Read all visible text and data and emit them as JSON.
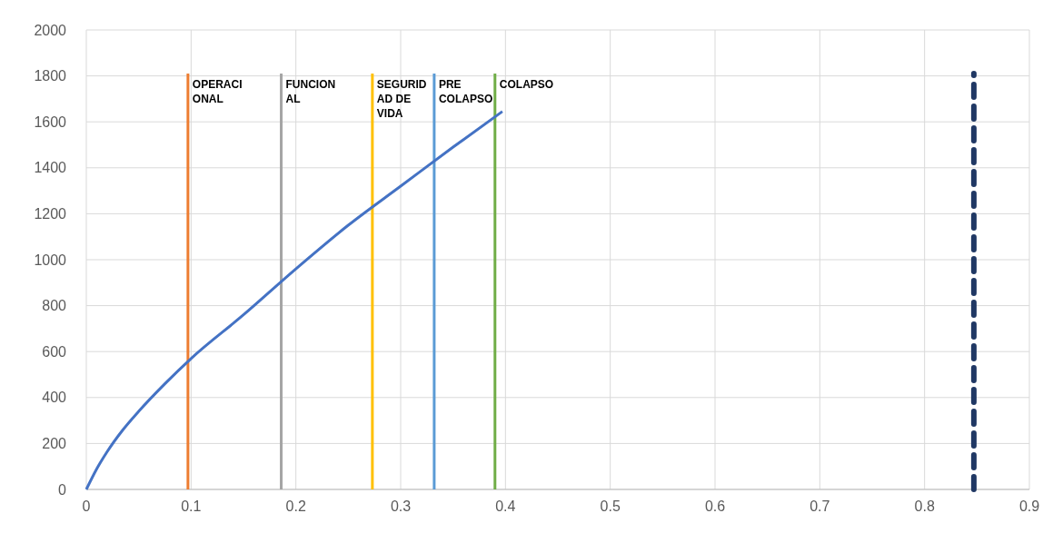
{
  "chart_data": {
    "type": "line",
    "xlim": [
      0,
      0.9
    ],
    "xticks": [
      0,
      0.1,
      0.2,
      0.3,
      0.4,
      0.5,
      0.6,
      0.7,
      0.8,
      0.9
    ],
    "ylim": [
      0,
      2000
    ],
    "yticks": [
      0,
      200,
      400,
      600,
      800,
      1000,
      1200,
      1400,
      1600,
      1800,
      2000
    ],
    "grid": true,
    "marker": "none",
    "series": [
      {
        "name": "OPERACIONAL",
        "color": "#ed7d31",
        "x": [
          0.097,
          0.097
        ],
        "values": [
          0,
          1810
        ]
      },
      {
        "name": "FUNCIONAL",
        "color": "#a5a5a5",
        "x": [
          0.186,
          0.186
        ],
        "values": [
          0,
          1810
        ]
      },
      {
        "name": "SEGURIDAD DE VIDA",
        "color": "#ffc000",
        "x": [
          0.273,
          0.273
        ],
        "values": [
          0,
          1810
        ]
      },
      {
        "name": "PRE COLAPSO",
        "color": "#5b9bd5",
        "x": [
          0.332,
          0.332
        ],
        "values": [
          0,
          1810
        ]
      },
      {
        "name": "COLAPSO",
        "color": "#70ad47",
        "x": [
          0.39,
          0.39
        ],
        "values": [
          0,
          1810
        ]
      },
      {
        "color": "#203864",
        "x": [
          0.847,
          0.847
        ],
        "values": [
          0,
          1810
        ],
        "line_style": "dashed"
      },
      {
        "color": "#4472c4",
        "x": [
          0,
          0.01,
          0.02,
          0.035,
          0.05,
          0.075,
          0.1,
          0.15,
          0.2,
          0.25,
          0.3,
          0.35,
          0.397
        ],
        "values": [
          0,
          90,
          165,
          260,
          340,
          460,
          570,
          760,
          960,
          1150,
          1320,
          1490,
          1645
        ]
      }
    ]
  }
}
